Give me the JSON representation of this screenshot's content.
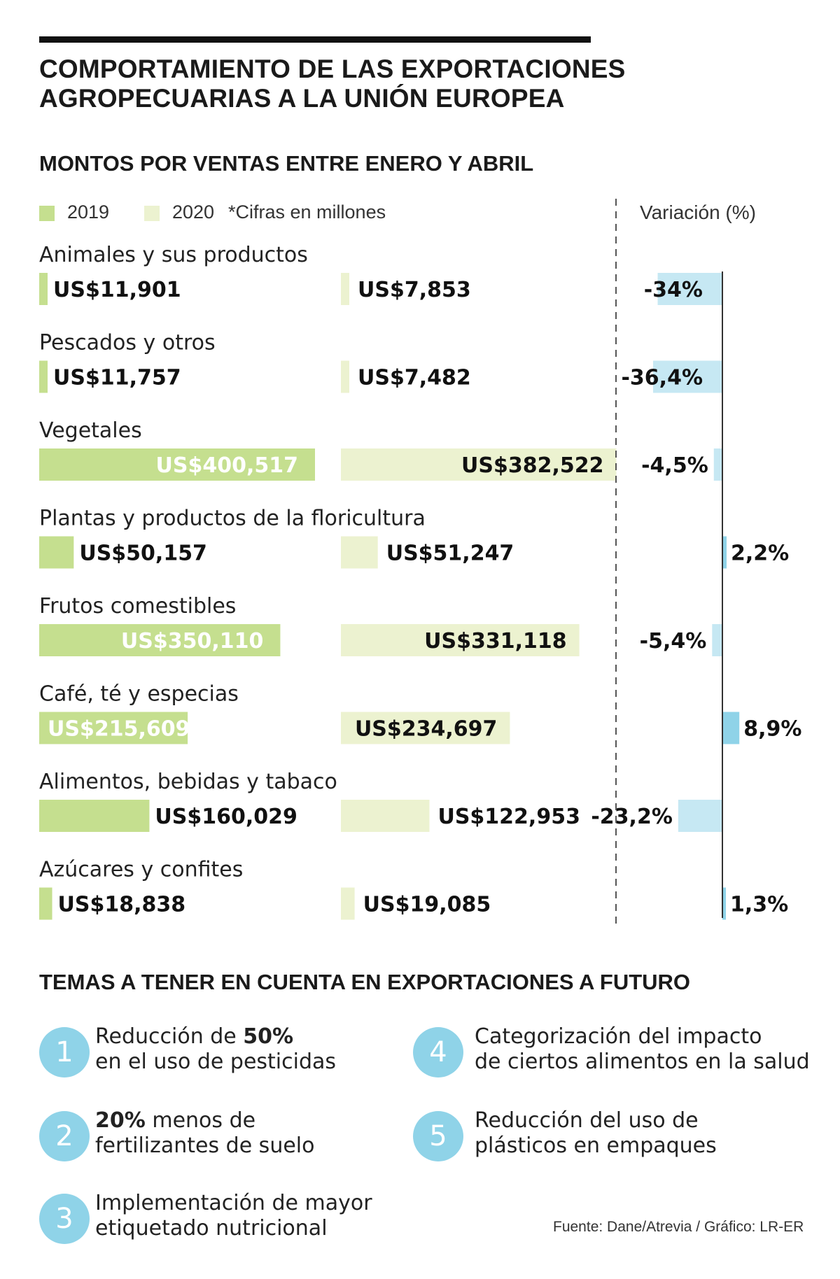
{
  "title_line1": "COMPORTAMIENTO DE LAS EXPORTACIONES",
  "title_line2": "AGROPECUARIAS A LA UNIÓN EUROPEA",
  "subtitle": "MONTOS POR VENTAS ENTRE ENERO Y ABRIL",
  "legend": {
    "y2019": "2019",
    "y2020": "2020",
    "note": "*Cifras en millones"
  },
  "variation_title": "Variación (%)",
  "colors": {
    "bar_2019": "#c5df8f",
    "bar_2020": "#ecf2d0",
    "variation": "#8fd3e8",
    "variation_light": "#c6e8f3",
    "circle": "#8fd3e8"
  },
  "chart_data": {
    "type": "bar",
    "categories": [
      "Animales y sus productos",
      "Pescados y otros",
      "Vegetales",
      "Plantas y productos de la floricultura",
      "Frutos comestibles",
      "Café, té y especias",
      "Alimentos, bebidas y tabaco",
      "Azúcares y confites"
    ],
    "series": [
      {
        "name": "2019",
        "values": [
          11901,
          11757,
          400517,
          50157,
          350110,
          215609,
          160029,
          18838
        ],
        "labels": [
          "US$11,901",
          "US$11,757",
          "US$400,517",
          "US$50,157",
          "US$350,110",
          "US$215,609",
          "US$160,029",
          "US$18,838"
        ]
      },
      {
        "name": "2020",
        "values": [
          7853,
          7482,
          382522,
          51247,
          331118,
          234697,
          122953,
          19085
        ],
        "labels": [
          "US$7,853",
          "US$7,482",
          "US$382,522",
          "US$51,247",
          "US$331,118",
          "US$234,697",
          "US$122,953",
          "US$19,085"
        ]
      }
    ],
    "variation": {
      "values": [
        -34,
        -36.4,
        -4.5,
        2.2,
        -5.4,
        8.9,
        -23.2,
        1.3
      ],
      "labels": [
        "-34%",
        "-36,4%",
        "-4,5%",
        "2,2%",
        "-5,4%",
        "8,9%",
        "-23,2%",
        "1,3%"
      ]
    }
  },
  "topics_title": "TEMAS A TENER EN CUENTA EN EXPORTACIONES A FUTURO",
  "topics": [
    {
      "num": "1",
      "pre": "Reducción de ",
      "bold": "50%",
      "post": "",
      "line2": "en el uso de pesticidas"
    },
    {
      "num": "2",
      "pre": "",
      "bold": "20%",
      "post": " menos de",
      "line2": "fertilizantes de suelo"
    },
    {
      "num": "3",
      "pre": "Implementación de mayor",
      "bold": "",
      "post": "",
      "line2": "etiquetado nutricional"
    },
    {
      "num": "4",
      "pre": "Categorización del impacto",
      "bold": "",
      "post": "",
      "line2": "de ciertos alimentos en la salud"
    },
    {
      "num": "5",
      "pre": "Reducción del uso de",
      "bold": "",
      "post": "",
      "line2": "plásticos en empaques"
    }
  ],
  "source": "Fuente: Dane/Atrevia / Gráfico: LR-ER"
}
